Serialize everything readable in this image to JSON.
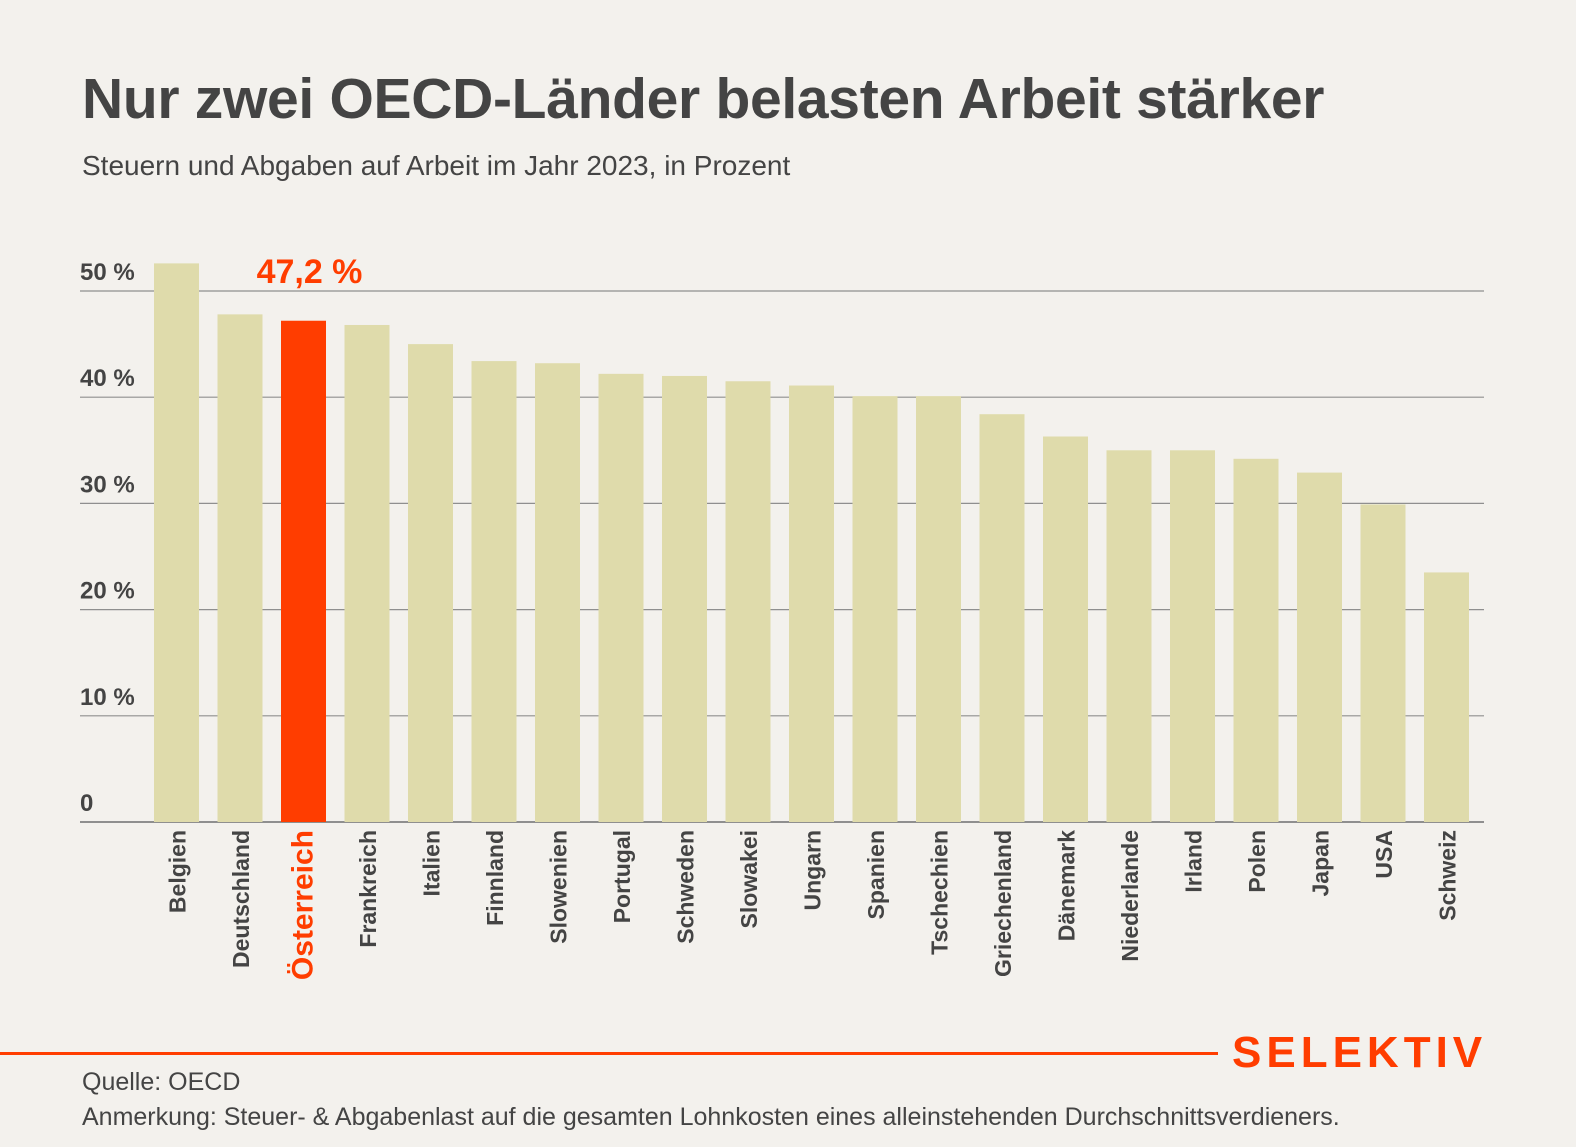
{
  "header": {
    "title": "Nur zwei OECD-Länder belasten Arbeit stärker",
    "subtitle": "Steuern und Abgaben auf Arbeit im Jahr 2023, in Prozent"
  },
  "footer": {
    "source": "Quelle: OECD",
    "note": "Anmerkung: Steuer- & Abgabenlast auf die gesamten Lohnkosten eines alleinstehenden Durchschnittsverdieners.",
    "logo": "SELEKTIV"
  },
  "colors": {
    "bar": "#dfdbab",
    "highlight": "#ff3d00",
    "grid": "#8f8f8f",
    "text": "#444444",
    "background": "#f3f1ed"
  },
  "chart_data": {
    "type": "bar",
    "title": "Nur zwei OECD-Länder belasten Arbeit stärker",
    "subtitle": "Steuern und Abgaben auf Arbeit im Jahr 2023, in Prozent",
    "xlabel": "",
    "ylabel": "",
    "ylim": [
      0,
      50
    ],
    "yticks": [
      0,
      10,
      20,
      30,
      40,
      50
    ],
    "ytick_labels": [
      "0",
      "10 %",
      "20 %",
      "30 %",
      "40 %",
      "50 %"
    ],
    "grid": true,
    "categories": [
      "Belgien",
      "Deutschland",
      "Österreich",
      "Frankreich",
      "Italien",
      "Finnland",
      "Slowenien",
      "Portugal",
      "Schweden",
      "Slowakei",
      "Ungarn",
      "Spanien",
      "Tschechien",
      "Griechenland",
      "Dänemark",
      "Niederlande",
      "Irland",
      "Polen",
      "Japan",
      "USA",
      "Schweiz"
    ],
    "values": [
      52.6,
      47.8,
      47.2,
      46.8,
      45.0,
      43.4,
      43.2,
      42.2,
      42.0,
      41.5,
      41.1,
      40.1,
      40.1,
      38.4,
      36.3,
      35.0,
      35.0,
      34.2,
      32.9,
      29.9,
      23.5
    ],
    "highlight": {
      "category": "Österreich",
      "label": "47,2 %"
    }
  }
}
